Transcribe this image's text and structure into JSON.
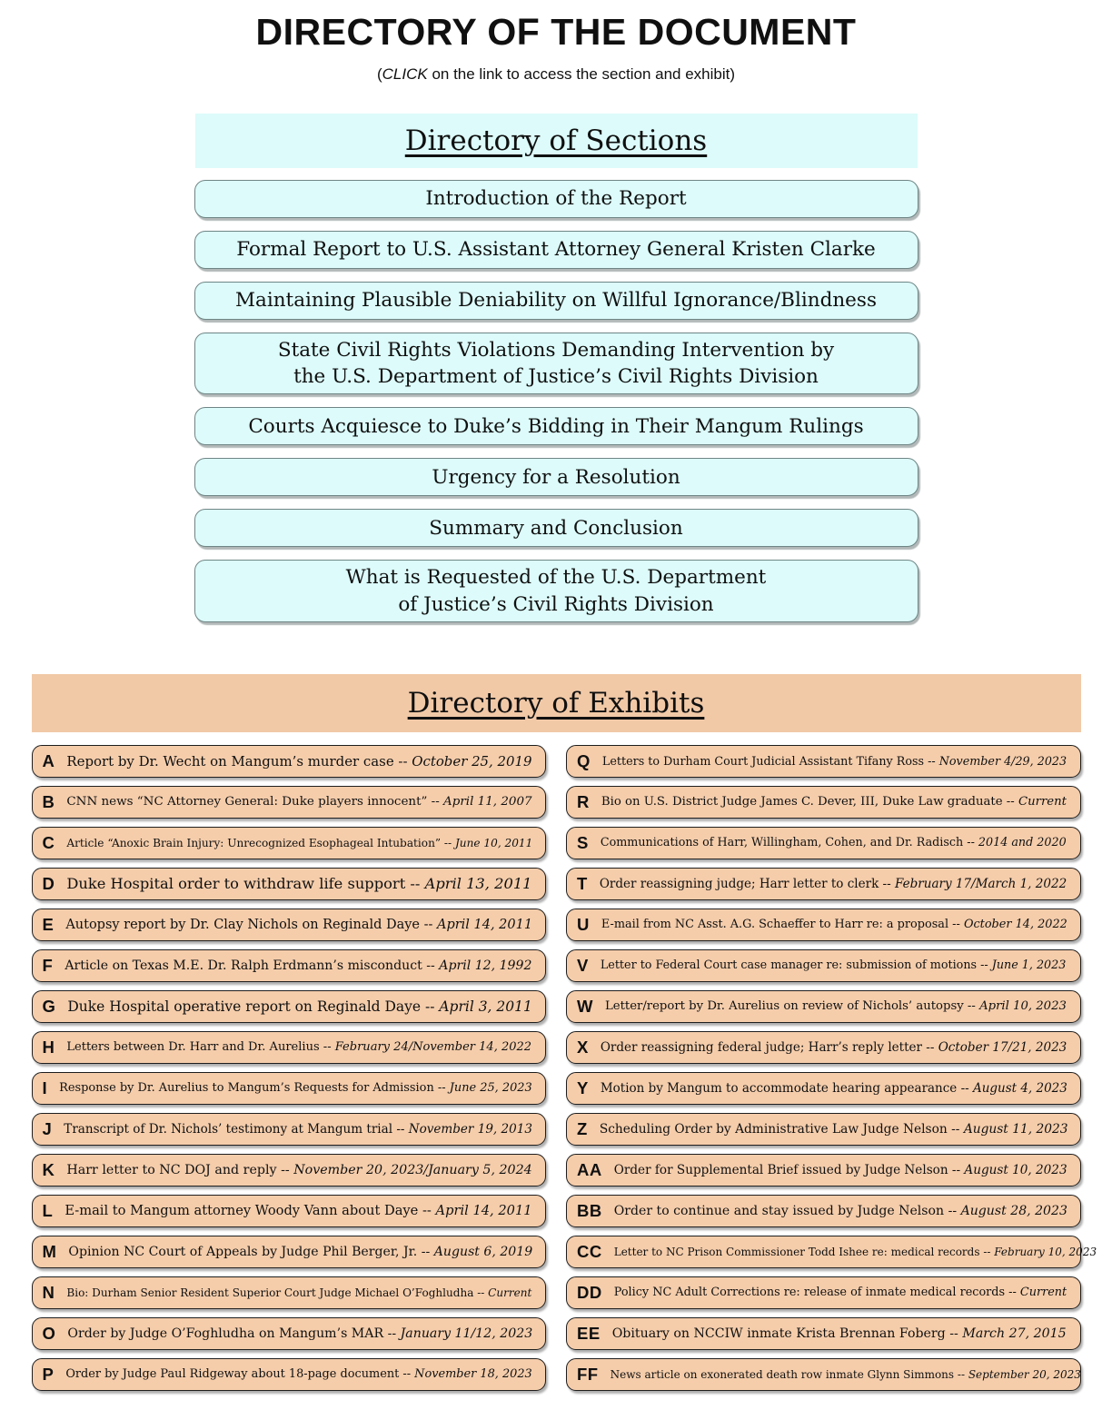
{
  "colors": {
    "cyan": "#DCFBFA",
    "cyan_border": "#6F8585",
    "peach_band": "#F1C9A7",
    "peach_row": "#F5CDAB",
    "ink": "#101010"
  },
  "page": {
    "title": "DIRECTORY OF THE DOCUMENT",
    "subtitle_open": "(",
    "subtitle_italic": "CLICK",
    "subtitle_rest": " on the link to access the section and exhibit)"
  },
  "sections": {
    "header": "Directory of Sections",
    "items": [
      {
        "label": "Introduction of the Report"
      },
      {
        "label": "Formal Report to U.S. Assistant Attorney General Kristen Clarke"
      },
      {
        "label": "Maintaining Plausible Deniability on Willful Ignorance/Blindness"
      },
      {
        "label": "State Civil Rights Violations Demanding Intervention by\nthe U.S. Department of Justice’s Civil Rights Division"
      },
      {
        "label": "Courts Acquiesce to Duke’s Bidding in Their Mangum Rulings"
      },
      {
        "label": "Urgency for a Resolution"
      },
      {
        "label": "Summary and Conclusion"
      },
      {
        "label": "What is Requested of the U.S. Department\nof Justice’s Civil Rights Division"
      }
    ]
  },
  "exhibits": {
    "header": "Directory of Exhibits",
    "separator": "--",
    "left": [
      {
        "id": "A",
        "text": "Report by Dr. Wecht on Mangum’s murder case",
        "date": "October 25, 2019"
      },
      {
        "id": "B",
        "text": "CNN news “NC Attorney General: Duke players innocent”",
        "date": "April 11, 2007"
      },
      {
        "id": "C",
        "text": "Article “Anoxic Brain Injury: Unrecognized Esophageal Intubation”",
        "date": "June 10, 2011"
      },
      {
        "id": "D",
        "text": "Duke Hospital order to withdraw life support",
        "date": "April 13, 2011"
      },
      {
        "id": "E",
        "text": "Autopsy report by Dr. Clay Nichols on Reginald Daye",
        "date": "April 14, 2011"
      },
      {
        "id": "F",
        "text": "Article on Texas M.E.  Dr. Ralph Erdmann’s misconduct",
        "date": "April 12, 1992"
      },
      {
        "id": "G",
        "text": "Duke Hospital operative report on Reginald Daye",
        "date": "April 3, 2011"
      },
      {
        "id": "H",
        "text": "Letters between Dr. Harr and Dr. Aurelius",
        "date": "February 24/November 14, 2022"
      },
      {
        "id": "I",
        "text": "Response by Dr. Aurelius to Mangum’s Requests for Admission",
        "date": "June 25, 2023"
      },
      {
        "id": "J",
        "text": "Transcript of Dr. Nichols’ testimony at Mangum trial",
        "date": "November 19, 2013"
      },
      {
        "id": "K",
        "text": "Harr letter to NC DOJ and reply",
        "date": "November 20, 2023/January 5, 2024"
      },
      {
        "id": "L",
        "text": "E-mail to Mangum attorney Woody Vann about Daye",
        "date": "April 14, 2011"
      },
      {
        "id": "M",
        "text": "Opinion NC Court of Appeals by Judge Phil Berger, Jr.",
        "date": "August 6, 2019"
      },
      {
        "id": "N",
        "text": "Bio: Durham Senior Resident Superior Court Judge Michael O’Foghludha",
        "date": "Current"
      },
      {
        "id": "O",
        "text": "Order by Judge O’Foghludha on Mangum’s MAR",
        "date": "January 11/12, 2023"
      },
      {
        "id": "P",
        "text": "Order by Judge Paul Ridgeway about 18-page document ",
        "date": "November 18, 2023"
      }
    ],
    "right": [
      {
        "id": "Q",
        "text": "Letters to Durham Court Judicial Assistant Tifany Ross",
        "date": "November 4/29, 2023"
      },
      {
        "id": "R",
        "text": "Bio on U.S. District Judge James C. Dever, III, Duke Law graduate",
        "date": "Current"
      },
      {
        "id": "S",
        "text": "Communications of Harr, Willingham, Cohen, and Dr. Radisch",
        "date": "2014 and 2020"
      },
      {
        "id": "T",
        "text": "Order reassigning judge; Harr letter to clerk",
        "date": "February 17/March 1, 2022"
      },
      {
        "id": "U",
        "text": "E-mail from NC Asst. A.G. Schaeffer to Harr re: a proposal",
        "date": "October 14, 2022"
      },
      {
        "id": "V",
        "text": "Letter to Federal Court case manager re: submission of motions",
        "date": "June 1, 2023"
      },
      {
        "id": "W",
        "text": "Letter/report by Dr. Aurelius on review of Nichols’ autopsy",
        "date": "April 10, 2023"
      },
      {
        "id": "X",
        "text": "Order reassigning federal judge; Harr’s reply letter",
        "date": "October 17/21, 2023"
      },
      {
        "id": "Y",
        "text": "Motion by Mangum to accommodate hearing appearance",
        "date": "August 4, 2023"
      },
      {
        "id": "Z",
        "text": "Scheduling Order by Administrative Law Judge Nelson",
        "date": "August 11, 2023"
      },
      {
        "id": "AA",
        "text": "Order for Supplemental Brief issued by Judge Nelson",
        "date": "August 10, 2023"
      },
      {
        "id": "BB",
        "text": "Order to continue and stay issued by Judge Nelson",
        "date": "August 28, 2023"
      },
      {
        "id": "CC",
        "text": "Letter to NC Prison Commissioner Todd Ishee re: medical records",
        "date": "February 10, 2023"
      },
      {
        "id": "DD",
        "text": "Policy NC Adult Corrections re: release of inmate medical records",
        "date": "Current"
      },
      {
        "id": "EE",
        "text": "Obituary on NCCIW inmate Krista Brennan Foberg",
        "date": "March 27, 2015"
      },
      {
        "id": "FF",
        "text": "News article on exonerated death row inmate Glynn Simmons",
        "date": "September 20, 2023"
      }
    ]
  }
}
